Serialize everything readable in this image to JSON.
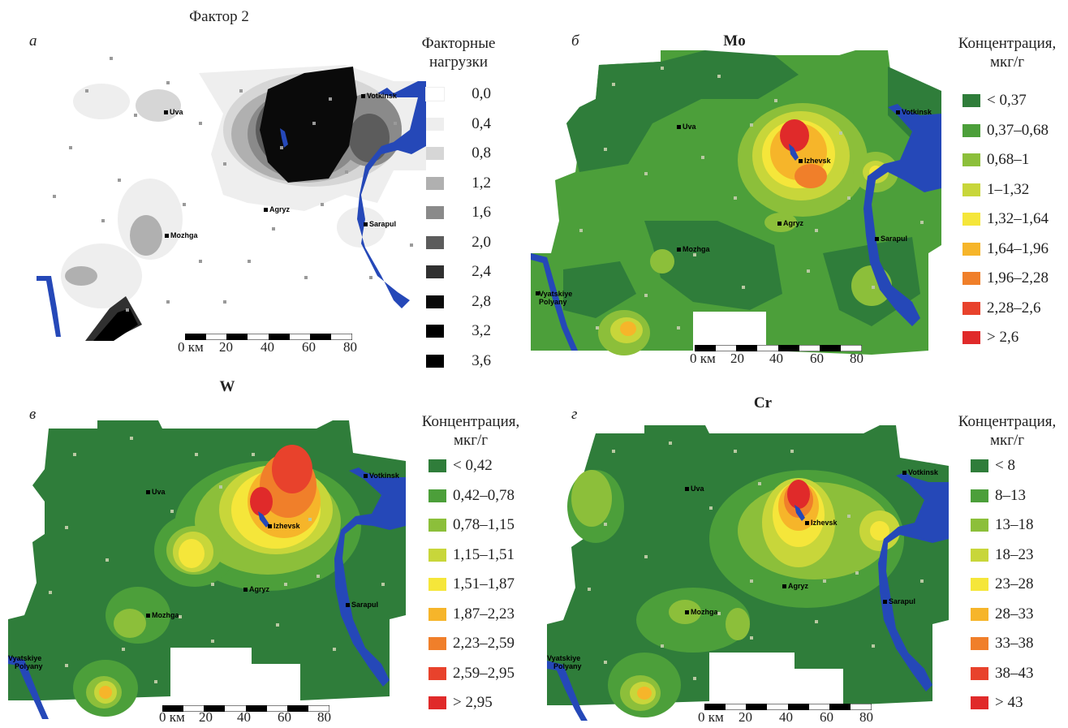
{
  "panels": {
    "a": {
      "letter": "а",
      "title": "Фактор 2",
      "legend_title": [
        "Факторные",
        "нагрузки"
      ],
      "legend": [
        {
          "label": "0,0",
          "color": "#ffffff"
        },
        {
          "label": "0,4",
          "color": "#eeeeee"
        },
        {
          "label": "0,8",
          "color": "#d6d6d6"
        },
        {
          "label": "1,2",
          "color": "#b0b0b0"
        },
        {
          "label": "1,6",
          "color": "#8a8a8a"
        },
        {
          "label": "2,0",
          "color": "#5c5c5c"
        },
        {
          "label": "2,4",
          "color": "#303030"
        },
        {
          "label": "2,8",
          "color": "#0a0a0a"
        },
        {
          "label": "3,2",
          "color": "#000000"
        },
        {
          "label": "3,6",
          "color": "#000000"
        }
      ]
    },
    "b": {
      "letter": "б",
      "title": "Mo",
      "legend_title": [
        "Концентрация,",
        "мкг/г"
      ],
      "legend": [
        {
          "label": "< 0,37",
          "color": "#2f7d3a"
        },
        {
          "label": "0,37–0,68",
          "color": "#4c9f3a"
        },
        {
          "label": "0,68–1",
          "color": "#8cbf3a"
        },
        {
          "label": "1–1,32",
          "color": "#c8d63a"
        },
        {
          "label": "1,32–1,64",
          "color": "#f5e63a"
        },
        {
          "label": "1,64–1,96",
          "color": "#f6b52a"
        },
        {
          "label": "1,96–2,28",
          "color": "#f07f2a"
        },
        {
          "label": "2,28–2,6",
          "color": "#e8422c"
        },
        {
          "label": "> 2,6",
          "color": "#e02a2a"
        }
      ]
    },
    "c": {
      "letter": "в",
      "title": "W",
      "legend_title": [
        "Концентрация,",
        "мкг/г"
      ],
      "legend": [
        {
          "label": "< 0,42",
          "color": "#2f7d3a"
        },
        {
          "label": "0,42–0,78",
          "color": "#4c9f3a"
        },
        {
          "label": "0,78–1,15",
          "color": "#8cbf3a"
        },
        {
          "label": "1,15–1,51",
          "color": "#c8d63a"
        },
        {
          "label": "1,51–1,87",
          "color": "#f5e63a"
        },
        {
          "label": "1,87–2,23",
          "color": "#f6b52a"
        },
        {
          "label": "2,23–2,59",
          "color": "#f07f2a"
        },
        {
          "label": "2,59–2,95",
          "color": "#e8422c"
        },
        {
          "label": "> 2,95",
          "color": "#e02a2a"
        }
      ]
    },
    "d": {
      "letter": "г",
      "title": "Cr",
      "legend_title": [
        "Концентрация,",
        "мкг/г"
      ],
      "legend": [
        {
          "label": "< 8",
          "color": "#2f7d3a"
        },
        {
          "label": "8–13",
          "color": "#4c9f3a"
        },
        {
          "label": "13–18",
          "color": "#8cbf3a"
        },
        {
          "label": "18–23",
          "color": "#c8d63a"
        },
        {
          "label": "23–28",
          "color": "#f5e63a"
        },
        {
          "label": "28–33",
          "color": "#f6b52a"
        },
        {
          "label": "33–38",
          "color": "#f07f2a"
        },
        {
          "label": "38–43",
          "color": "#e8422c"
        },
        {
          "label": "> 43",
          "color": "#e02a2a"
        }
      ]
    }
  },
  "cities": {
    "uva": "Uva",
    "votkinsk": "Votkinsk",
    "izhevsk": "Izhevsk",
    "agryz": "Agryz",
    "sarapul": "Sarapul",
    "mozhga": "Mozhga",
    "vyatskiye_line1": "Vyatskiye",
    "vyatskiye_line2": "Polyany"
  },
  "scale": {
    "ticks": [
      "0 км",
      "20",
      "40",
      "60",
      "80"
    ]
  },
  "colors": {
    "river": "#2548b8",
    "sample_point": "#9a9a9a",
    "map_green_base": "#2f7d3a"
  }
}
